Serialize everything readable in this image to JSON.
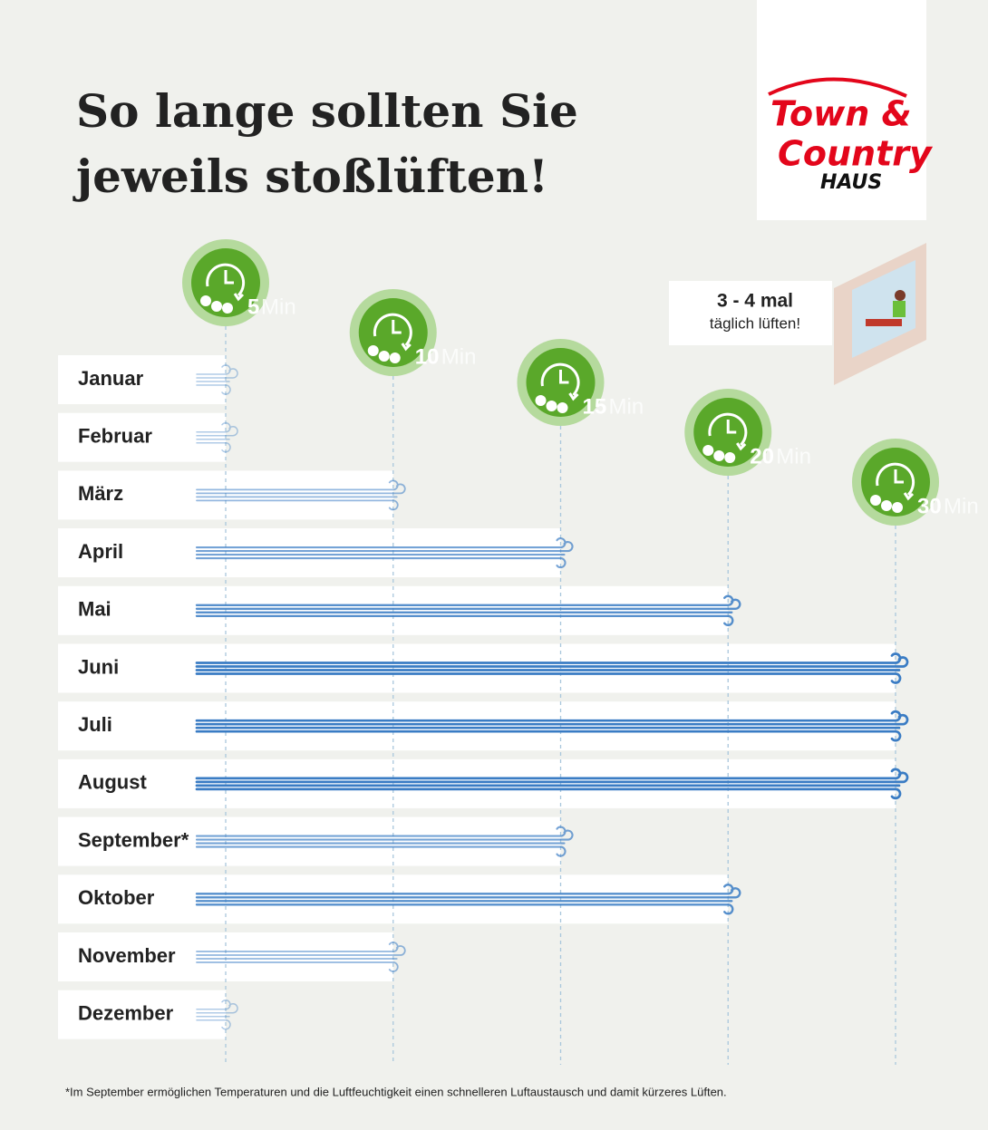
{
  "chart_data": {
    "type": "bar",
    "title": [
      "So lange sollten Sie",
      "jeweils stoßlüften!"
    ],
    "categories": [
      "Januar",
      "Februar",
      "März",
      "April",
      "Mai",
      "Juni",
      "Juli",
      "August",
      "September*",
      "Oktober",
      "November",
      "Dezember"
    ],
    "values": [
      5,
      5,
      10,
      15,
      20,
      30,
      30,
      30,
      15,
      20,
      10,
      5
    ],
    "color": "#3a7cc4",
    "xlim": [
      5,
      30
    ],
    "xticks": [
      5,
      10,
      15,
      20,
      30
    ],
    "tick_unit": "Min",
    "grid": true,
    "note": [
      "3 - 4 mal",
      "täglich lüften!"
    ],
    "footnote": "*Im September ermöglichen Temperaturen und die Luftfeuchtigkeit einen schnelleren Luftaustausch und damit kürzeres Lüften."
  },
  "logo": {
    "line1": "Town &",
    "line2": "Country",
    "line3": "HAUS"
  }
}
